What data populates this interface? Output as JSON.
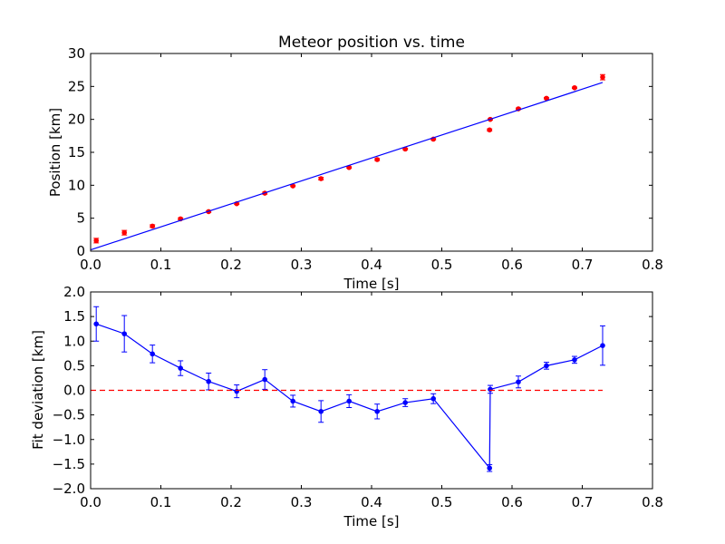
{
  "chart_data": [
    {
      "type": "scatter",
      "title": "Meteor position vs. time",
      "xlabel": "Time [s]",
      "ylabel": "Position [km]",
      "xlim": [
        0.0,
        0.8
      ],
      "ylim": [
        0,
        30
      ],
      "xticks": [
        "0.0",
        "0.1",
        "0.2",
        "0.3",
        "0.4",
        "0.5",
        "0.6",
        "0.7",
        "0.8"
      ],
      "yticks": [
        "0",
        "5",
        "10",
        "15",
        "20",
        "25",
        "30"
      ],
      "grid": false,
      "series": [
        {
          "kind": "points-with-errorbars",
          "color": "#ff0000",
          "x": [
            0.008,
            0.048,
            0.088,
            0.128,
            0.168,
            0.208,
            0.248,
            0.288,
            0.328,
            0.368,
            0.408,
            0.448,
            0.488,
            0.568,
            0.569,
            0.609,
            0.649,
            0.689,
            0.729
          ],
          "y": [
            1.6,
            2.8,
            3.8,
            4.9,
            6.0,
            7.2,
            8.8,
            9.9,
            11.0,
            12.7,
            13.9,
            15.5,
            17.0,
            18.4,
            20.0,
            21.6,
            23.2,
            24.8,
            26.4
          ],
          "yerr": [
            0.35,
            0.35,
            0.2,
            0.15,
            0.12,
            0.1,
            0.15,
            0.1,
            0.2,
            0.1,
            0.15,
            0.1,
            0.1,
            0.15,
            0.1,
            0.12,
            0.1,
            0.1,
            0.4
          ]
        },
        {
          "kind": "fit-line",
          "color": "#0000ff",
          "x": [
            0.0,
            0.729
          ],
          "y": [
            0.2,
            25.6
          ]
        }
      ]
    },
    {
      "type": "line",
      "title": "",
      "xlabel": "Time [s]",
      "ylabel": "Fit deviation [km]",
      "xlim": [
        0.0,
        0.8
      ],
      "ylim": [
        -2.0,
        2.0
      ],
      "xticks": [
        "0.0",
        "0.1",
        "0.2",
        "0.3",
        "0.4",
        "0.5",
        "0.6",
        "0.7",
        "0.8"
      ],
      "yticks": [
        "−2.0",
        "−1.5",
        "−1.0",
        "−0.5",
        "0.0",
        "0.5",
        "1.0",
        "1.5",
        "2.0"
      ],
      "grid": false,
      "series": [
        {
          "kind": "line-with-errorbars",
          "color": "#0000ff",
          "x": [
            0.008,
            0.048,
            0.088,
            0.128,
            0.168,
            0.208,
            0.248,
            0.288,
            0.328,
            0.368,
            0.408,
            0.448,
            0.488,
            0.568,
            0.569,
            0.609,
            0.649,
            0.689,
            0.729
          ],
          "y": [
            1.35,
            1.15,
            0.74,
            0.45,
            0.18,
            -0.02,
            0.22,
            -0.22,
            -0.43,
            -0.22,
            -0.43,
            -0.25,
            -0.17,
            -1.58,
            0.02,
            0.17,
            0.5,
            0.62,
            0.91
          ],
          "yerr": [
            0.35,
            0.37,
            0.18,
            0.15,
            0.17,
            0.13,
            0.2,
            0.12,
            0.22,
            0.13,
            0.15,
            0.08,
            0.1,
            0.07,
            0.08,
            0.12,
            0.07,
            0.07,
            0.4
          ]
        },
        {
          "kind": "reference-line-dashed",
          "color": "#ff0000",
          "x": [
            0.0,
            0.729
          ],
          "y": [
            0.0,
            0.0
          ]
        }
      ]
    }
  ]
}
